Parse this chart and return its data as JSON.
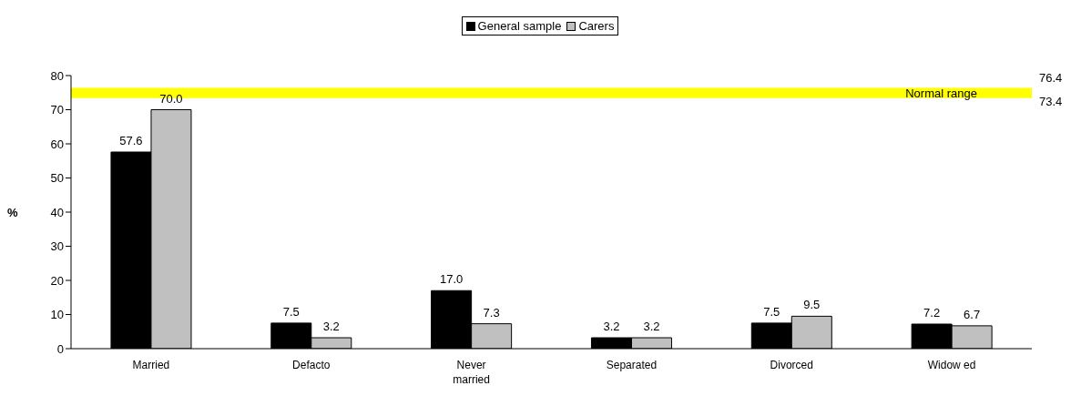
{
  "chart_data": {
    "type": "bar",
    "ylabel": "%",
    "categories": [
      "Married",
      "Defacto",
      "Never married",
      "Separated",
      "Divorced",
      "Widow ed"
    ],
    "series": [
      {
        "name": "General sample",
        "color": "#000000",
        "values": [
          57.6,
          7.5,
          17.0,
          3.2,
          7.5,
          7.2
        ],
        "value_labels": [
          "57.6",
          "7.5",
          "17.0",
          "3.2",
          "7.5",
          "7.2"
        ]
      },
      {
        "name": "Carers",
        "color": "#c0c0c0",
        "values": [
          70.0,
          3.2,
          7.3,
          3.2,
          9.5,
          6.7
        ],
        "value_labels": [
          "70.0",
          "3.2",
          "7.3",
          "3.2",
          "9.5",
          "6.7"
        ]
      }
    ],
    "ylim": [
      0,
      80
    ],
    "yticks": [
      0,
      10,
      20,
      30,
      40,
      50,
      60,
      70,
      80
    ],
    "grid": false,
    "legend": "top",
    "bands": [
      {
        "axis": "y",
        "from": 73.4,
        "to": 76.4,
        "label": "Normal range",
        "color": "#ffff00"
      }
    ],
    "annotations": [
      "76.4",
      "73.4"
    ]
  }
}
